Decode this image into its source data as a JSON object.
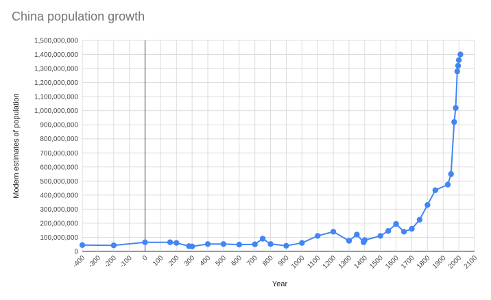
{
  "chart_data": {
    "type": "line",
    "title": "China population growth",
    "xlabel": "Year",
    "ylabel": "Modern estimates of population",
    "xlim": [
      -400,
      2100
    ],
    "ylim": [
      0,
      1500000000
    ],
    "x_ticks": [
      "-400",
      "-300",
      "-200",
      "-100",
      "0",
      "100",
      "200",
      "300",
      "400",
      "500",
      "600",
      "700",
      "800",
      "900",
      "1000",
      "1100",
      "1200",
      "1300",
      "1400",
      "1500",
      "1600",
      "1700",
      "1800",
      "1900",
      "2000",
      "2100"
    ],
    "y_ticks": [
      "0",
      "100,000,000",
      "200,000,000",
      "300,000,000",
      "400,000,000",
      "500,000,000",
      "600,000,000",
      "700,000,000",
      "800,000,000",
      "900,000,000",
      "1,000,000,000",
      "1,100,000,000",
      "1,200,000,000",
      "1,300,000,000",
      "1,400,000,000",
      "1,500,000,000"
    ],
    "grid": true,
    "legend": "none",
    "series": [
      {
        "color": "#4285f4",
        "points": [
          {
            "x": -400,
            "y": 45000000
          },
          {
            "x": -200,
            "y": 43000000
          },
          {
            "x": 0,
            "y": 65000000
          },
          {
            "x": 160,
            "y": 65000000
          },
          {
            "x": 200,
            "y": 60000000
          },
          {
            "x": 280,
            "y": 37000000
          },
          {
            "x": 300,
            "y": 35000000
          },
          {
            "x": 400,
            "y": 52000000
          },
          {
            "x": 500,
            "y": 52000000
          },
          {
            "x": 600,
            "y": 48000000
          },
          {
            "x": 700,
            "y": 50000000
          },
          {
            "x": 750,
            "y": 90000000
          },
          {
            "x": 800,
            "y": 52000000
          },
          {
            "x": 900,
            "y": 40000000
          },
          {
            "x": 1000,
            "y": 60000000
          },
          {
            "x": 1100,
            "y": 110000000
          },
          {
            "x": 1200,
            "y": 140000000
          },
          {
            "x": 1300,
            "y": 75000000
          },
          {
            "x": 1350,
            "y": 120000000
          },
          {
            "x": 1393,
            "y": 65000000
          },
          {
            "x": 1400,
            "y": 80000000
          },
          {
            "x": 1500,
            "y": 110000000
          },
          {
            "x": 1550,
            "y": 145000000
          },
          {
            "x": 1600,
            "y": 195000000
          },
          {
            "x": 1650,
            "y": 140000000
          },
          {
            "x": 1700,
            "y": 160000000
          },
          {
            "x": 1750,
            "y": 225000000
          },
          {
            "x": 1800,
            "y": 330000000
          },
          {
            "x": 1850,
            "y": 435000000
          },
          {
            "x": 1930,
            "y": 475000000
          },
          {
            "x": 1950,
            "y": 550000000
          },
          {
            "x": 1970,
            "y": 920000000
          },
          {
            "x": 1980,
            "y": 1020000000
          },
          {
            "x": 1990,
            "y": 1280000000
          },
          {
            "x": 1995,
            "y": 1320000000
          },
          {
            "x": 2000,
            "y": 1360000000
          },
          {
            "x": 2010,
            "y": 1400000000
          }
        ]
      }
    ]
  }
}
